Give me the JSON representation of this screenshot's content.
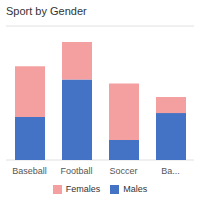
{
  "chart_data": {
    "type": "bar",
    "title": "Sport by Gender",
    "categories": [
      "Baseball",
      "Football",
      "Soccer",
      "Ba..."
    ],
    "series": [
      {
        "name": "Males",
        "color": "#4472c4",
        "values": [
          32,
          60,
          15,
          35
        ]
      },
      {
        "name": "Females",
        "color": "#f4a0a0",
        "values": [
          38,
          28,
          42,
          12
        ]
      }
    ],
    "stacked": true,
    "ylim": [
      0,
      100
    ],
    "yticks": [
      0,
      20,
      40,
      60,
      80,
      100
    ],
    "grid": true,
    "tick_labels": "x"
  }
}
